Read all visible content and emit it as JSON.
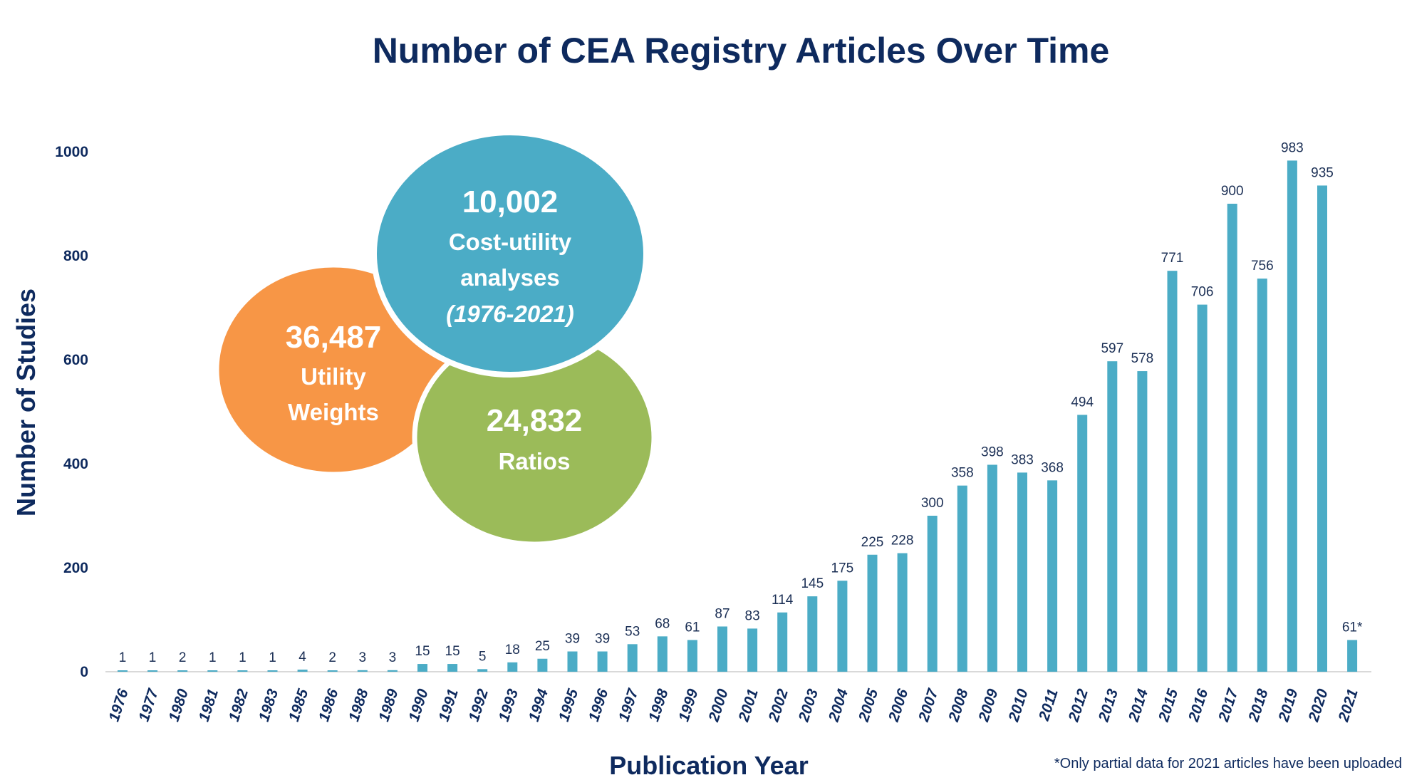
{
  "chart_data": {
    "type": "bar",
    "title": "Number of CEA Registry Articles Over Time",
    "xlabel": "Publication Year",
    "ylabel": "Number of Studies",
    "ylim": [
      0,
      1000
    ],
    "yticks": [
      0,
      200,
      400,
      600,
      800,
      1000
    ],
    "grid": false,
    "bar_color": "#4bacc6",
    "categories": [
      "1976",
      "1977",
      "1980",
      "1981",
      "1982",
      "1983",
      "1985",
      "1986",
      "1988",
      "1989",
      "1990",
      "1991",
      "1992",
      "1993",
      "1994",
      "1995",
      "1996",
      "1997",
      "1998",
      "1999",
      "2000",
      "2001",
      "2002",
      "2003",
      "2004",
      "2005",
      "2006",
      "2007",
      "2008",
      "2009",
      "2010",
      "2011",
      "2012",
      "2013",
      "2014",
      "2015",
      "2016",
      "2017",
      "2018",
      "2019",
      "2020",
      "2021"
    ],
    "values": [
      1,
      1,
      2,
      1,
      1,
      1,
      4,
      2,
      3,
      3,
      15,
      15,
      5,
      18,
      25,
      39,
      39,
      53,
      68,
      61,
      87,
      83,
      114,
      145,
      175,
      225,
      228,
      300,
      358,
      398,
      383,
      368,
      494,
      597,
      578,
      771,
      706,
      900,
      756,
      983,
      935,
      61
    ],
    "data_labels": [
      "1",
      "1",
      "2",
      "1",
      "1",
      "1",
      "4",
      "2",
      "3",
      "3",
      "15",
      "15",
      "5",
      "18",
      "25",
      "39",
      "39",
      "53",
      "68",
      "61",
      "87",
      "83",
      "114",
      "145",
      "175",
      "225",
      "228",
      "300",
      "358",
      "398",
      "383",
      "368",
      "494",
      "597",
      "578",
      "771",
      "706",
      "900",
      "756",
      "983",
      "935",
      "61*"
    ],
    "footnote": "*Only partial data for 2021 articles have been uploaded"
  },
  "bubbles": [
    {
      "id": "utility",
      "value": "36,487",
      "lines": [
        "Utility",
        "Weights"
      ],
      "color": "#f79646"
    },
    {
      "id": "ratios",
      "value": "24,832",
      "lines": [
        "Ratios"
      ],
      "color": "#9bbb59"
    },
    {
      "id": "cua",
      "value": "10,002",
      "lines": [
        "Cost-utility",
        "analyses",
        "(1976-2021)"
      ],
      "color": "#4bacc6"
    }
  ]
}
